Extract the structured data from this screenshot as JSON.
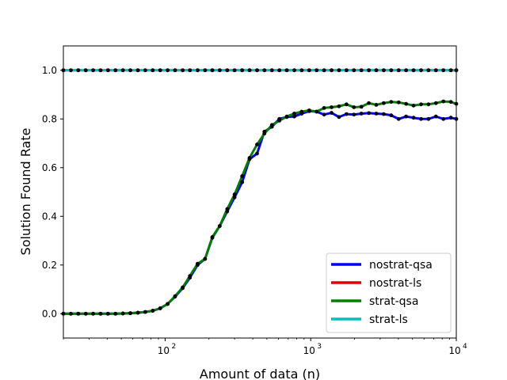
{
  "chart_data": {
    "type": "line",
    "title": "",
    "xlabel": "Amount of data (n)",
    "ylabel": "Solution Found Rate",
    "xscale": "log",
    "xlim": [
      20,
      10000
    ],
    "ylim": [
      -0.1,
      1.1
    ],
    "yticks": [
      0.0,
      0.2,
      0.4,
      0.6,
      0.8,
      1.0
    ],
    "ytick_labels": [
      "0.0",
      "0.2",
      "0.4",
      "0.6",
      "0.8",
      "1.0"
    ],
    "xticks": [
      100,
      1000,
      10000
    ],
    "xtick_labels": [
      "10",
      "10",
      "10"
    ],
    "xtick_exponents": [
      "2",
      "3",
      "4"
    ],
    "grid": false,
    "legend_position": "lower-right",
    "marker_color": "#000000",
    "x": [
      20,
      22.5,
      25.3,
      28.5,
      32,
      36,
      40.5,
      45.6,
      51.3,
      57.7,
      65,
      73,
      82.2,
      92.5,
      104,
      117,
      132,
      148,
      167,
      188,
      211,
      237,
      267,
      300,
      338,
      380,
      428,
      481,
      541,
      609,
      685,
      771,
      867,
      976,
      1098,
      1235,
      1390,
      1564,
      1760,
      1980,
      2228,
      2507,
      2820,
      3173,
      3570,
      4017,
      4520,
      5085,
      5722,
      6438,
      7244,
      8150,
      9170,
      10000
    ],
    "series": [
      {
        "name": "nostrat-qsa",
        "color": "#0000ff",
        "values": [
          0.0,
          0.0,
          0.0,
          0.0,
          0.0,
          0.0,
          0.0,
          0.0,
          0.001,
          0.002,
          0.004,
          0.007,
          0.012,
          0.022,
          0.04,
          0.07,
          0.105,
          0.148,
          0.2,
          0.225,
          0.312,
          0.36,
          0.42,
          0.478,
          0.54,
          0.635,
          0.658,
          0.748,
          0.768,
          0.8,
          0.808,
          0.81,
          0.822,
          0.832,
          0.83,
          0.818,
          0.825,
          0.808,
          0.82,
          0.818,
          0.822,
          0.824,
          0.822,
          0.82,
          0.815,
          0.8,
          0.81,
          0.805,
          0.8,
          0.8,
          0.81,
          0.8,
          0.805,
          0.8
        ]
      },
      {
        "name": "nostrat-ls",
        "color": "#dd0000",
        "values": [
          1.0,
          1.0,
          1.0,
          1.0,
          1.0,
          1.0,
          1.0,
          1.0,
          1.0,
          1.0,
          1.0,
          1.0,
          1.0,
          1.0,
          1.0,
          1.0,
          1.0,
          1.0,
          1.0,
          1.0,
          1.0,
          1.0,
          1.0,
          1.0,
          1.0,
          1.0,
          1.0,
          1.0,
          1.0,
          1.0,
          1.0,
          1.0,
          1.0,
          1.0,
          1.0,
          1.0,
          1.0,
          1.0,
          1.0,
          1.0,
          1.0,
          1.0,
          1.0,
          1.0,
          1.0,
          1.0,
          1.0,
          1.0,
          1.0,
          1.0,
          1.0,
          1.0,
          1.0,
          1.0
        ]
      },
      {
        "name": "strat-qsa",
        "color": "#008000",
        "values": [
          0.0,
          0.0,
          0.0,
          0.0,
          0.0,
          0.0,
          0.0,
          0.0,
          0.001,
          0.002,
          0.004,
          0.007,
          0.012,
          0.022,
          0.04,
          0.072,
          0.108,
          0.155,
          0.205,
          0.225,
          0.315,
          0.36,
          0.43,
          0.49,
          0.565,
          0.64,
          0.695,
          0.74,
          0.775,
          0.793,
          0.81,
          0.822,
          0.83,
          0.835,
          0.83,
          0.845,
          0.848,
          0.852,
          0.86,
          0.848,
          0.85,
          0.865,
          0.858,
          0.865,
          0.87,
          0.868,
          0.862,
          0.855,
          0.86,
          0.86,
          0.865,
          0.872,
          0.87,
          0.862
        ]
      },
      {
        "name": "strat-ls",
        "color": "#00bfbf",
        "values": [
          1.0,
          1.0,
          1.0,
          1.0,
          1.0,
          1.0,
          1.0,
          1.0,
          1.0,
          1.0,
          1.0,
          1.0,
          1.0,
          1.0,
          1.0,
          1.0,
          1.0,
          1.0,
          1.0,
          1.0,
          1.0,
          1.0,
          1.0,
          1.0,
          1.0,
          1.0,
          1.0,
          1.0,
          1.0,
          1.0,
          1.0,
          1.0,
          1.0,
          1.0,
          1.0,
          1.0,
          1.0,
          1.0,
          1.0,
          1.0,
          1.0,
          1.0,
          1.0,
          1.0,
          1.0,
          1.0,
          1.0,
          1.0,
          1.0,
          1.0,
          1.0,
          1.0,
          1.0,
          1.0
        ]
      }
    ]
  }
}
